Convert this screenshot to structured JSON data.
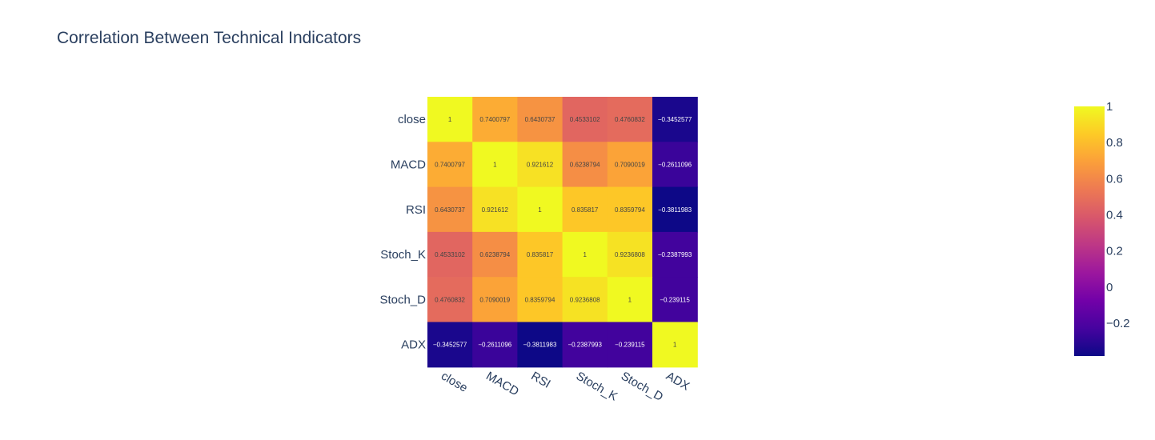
{
  "title": "Correlation Between Technical Indicators",
  "chart_data": {
    "type": "heatmap",
    "title": "Correlation Between Technical Indicators",
    "x": [
      "close",
      "MACD",
      "RSI",
      "Stoch_K",
      "Stoch_D",
      "ADX"
    ],
    "y": [
      "close",
      "MACD",
      "RSI",
      "Stoch_K",
      "Stoch_D",
      "ADX"
    ],
    "z": [
      [
        1,
        0.7400797,
        0.6430737,
        0.4533102,
        0.4760832,
        -0.3452577
      ],
      [
        0.7400797,
        1,
        0.921612,
        0.6238794,
        0.7090019,
        -0.2611096
      ],
      [
        0.6430737,
        0.921612,
        1,
        0.835817,
        0.8359794,
        -0.3811983
      ],
      [
        0.4533102,
        0.6238794,
        0.835817,
        1,
        0.9236808,
        -0.2387993
      ],
      [
        0.4760832,
        0.7090019,
        0.8359794,
        0.9236808,
        1,
        -0.239115
      ],
      [
        -0.3452577,
        -0.2611096,
        -0.3811983,
        -0.2387993,
        -0.239115,
        1
      ]
    ],
    "text": [
      [
        "1",
        "0.7400797",
        "0.6430737",
        "0.4533102",
        "0.4760832",
        "−0.3452577"
      ],
      [
        "0.7400797",
        "1",
        "0.921612",
        "0.6238794",
        "0.7090019",
        "−0.2611096"
      ],
      [
        "0.6430737",
        "0.921612",
        "1",
        "0.835817",
        "0.8359794",
        "−0.3811983"
      ],
      [
        "0.4533102",
        "0.6238794",
        "0.835817",
        "1",
        "0.9236808",
        "−0.2387993"
      ],
      [
        "0.4760832",
        "0.7090019",
        "0.8359794",
        "0.9236808",
        "1",
        "−0.239115"
      ],
      [
        "−0.3452577",
        "−0.2611096",
        "−0.3811983",
        "−0.2387993",
        "−0.239115",
        "1"
      ]
    ],
    "zmin": -0.3811983,
    "zmax": 1,
    "colorscale": "plasma",
    "colorbar": {
      "ticks": [
        1,
        0.8,
        0.6,
        0.4,
        0.2,
        0,
        -0.2
      ],
      "tick_labels": [
        "1",
        "0.8",
        "0.6",
        "0.4",
        "0.2",
        "0",
        "−0.2"
      ]
    },
    "xlabel": "",
    "ylabel": "",
    "grid": false
  },
  "colors": {
    "text_dark": "#2a3f5f",
    "scale_stops": [
      "#0d0887",
      "#46039f",
      "#7201a8",
      "#9c179e",
      "#bd3786",
      "#d8576b",
      "#ed7953",
      "#fb9f3a",
      "#fdca26",
      "#f0f921"
    ]
  }
}
